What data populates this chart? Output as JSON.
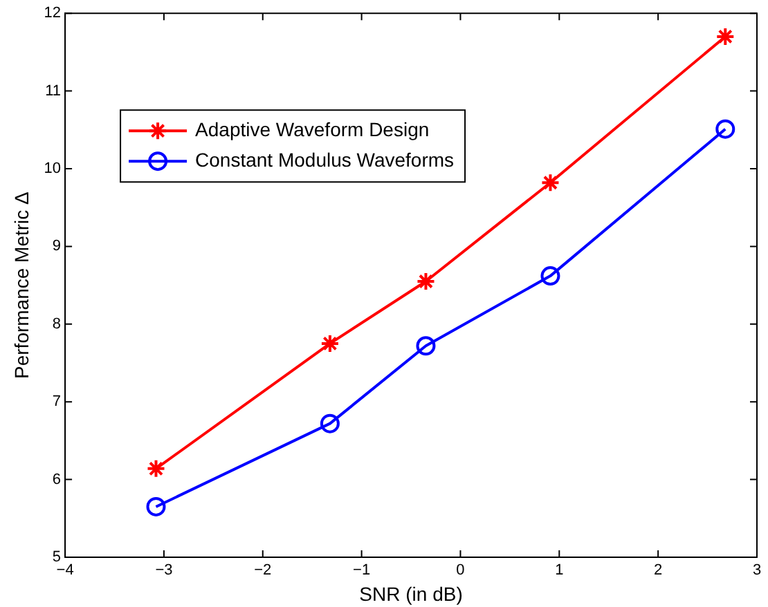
{
  "chart_data": {
    "type": "line",
    "xlabel": "SNR (in dB)",
    "ylabel": "Performance Metric Δ",
    "x": [
      -3.08,
      -1.32,
      -0.35,
      0.91,
      2.68
    ],
    "series": [
      {
        "name": "Adaptive Waveform Design",
        "color": "#ff0000",
        "marker": "cross",
        "values": [
          6.14,
          7.75,
          8.55,
          9.82,
          11.7
        ]
      },
      {
        "name": "Constant Modulus Waveforms",
        "color": "#0000ff",
        "marker": "circle",
        "values": [
          5.65,
          6.72,
          7.72,
          8.62,
          10.51
        ]
      }
    ],
    "xlim": [
      -4,
      3
    ],
    "xticks": [
      -4,
      -3,
      -2,
      -1,
      0,
      1,
      2,
      3
    ],
    "ylim": [
      5,
      12
    ],
    "yticks": [
      5,
      6,
      7,
      8,
      9,
      10,
      11,
      12
    ],
    "grid": false,
    "legend": "top left",
    "line_style": "solid"
  }
}
